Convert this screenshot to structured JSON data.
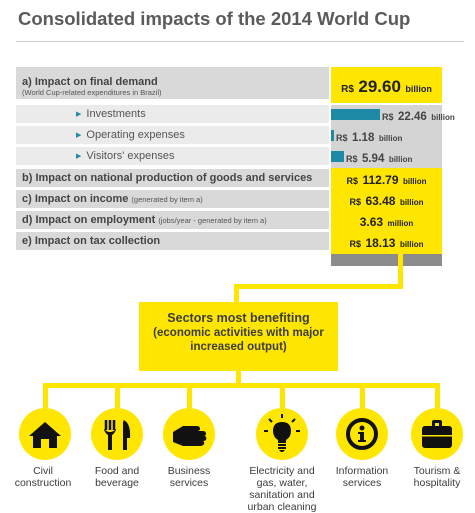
{
  "title": "Consolidated impacts of the 2014 World Cup",
  "rows": {
    "final_demand": {
      "label": "a) Impact on final demand",
      "note": "(World Cup-related expenditures in Brazil)",
      "currency": "R$",
      "value": "29.60",
      "unit": "billion"
    },
    "investments": {
      "label": "Investments",
      "currency": "R$",
      "value": "22.46",
      "unit": "billion"
    },
    "operating": {
      "label": "Operating expenses",
      "currency": "R$",
      "value": "1.18",
      "unit": "billion"
    },
    "visitors": {
      "label": "Visitors' expenses",
      "currency": "R$",
      "value": "5.94",
      "unit": "billion"
    },
    "production": {
      "label": "b) Impact on national production of goods and services",
      "currency": "R$",
      "value": "112.79",
      "unit": "billion"
    },
    "income": {
      "label": "c) Impact on income",
      "note": "(generated by item a)",
      "currency": "R$",
      "value": "63.48",
      "unit": "billion"
    },
    "employment": {
      "label": "d) Impact on employment",
      "note": "(jobs/year - generated by item a)",
      "value": "3.63",
      "unit": "million"
    },
    "tax": {
      "label": "e) Impact on tax collection",
      "currency": "R$",
      "value": "18.13",
      "unit": "billion"
    }
  },
  "bar_fractions": {
    "investments": 0.7588,
    "operating": 0.0399,
    "visitors": 0.2007
  },
  "sectors_box": {
    "line1": "Sectors most benefiting",
    "line2": "(economic activities with major",
    "line3": "increased output)"
  },
  "sectors": [
    {
      "icon": "house-icon",
      "line1": "Civil",
      "line2": "construction"
    },
    {
      "icon": "fork-knife-icon",
      "line1": "Food and",
      "line2": "beverage"
    },
    {
      "icon": "hand-icon",
      "line1": "Business",
      "line2": "services"
    },
    {
      "icon": "light-bulb-icon",
      "line1": "Electricity and",
      "line2": "gas, water,",
      "line3": "sanitation and",
      "line4": "urban cleaning"
    },
    {
      "icon": "info-icon",
      "line1": "Information",
      "line2": "services"
    },
    {
      "icon": "suitcase-icon",
      "line1": "Tourism &",
      "line2": "hospitality"
    }
  ],
  "colors": {
    "accent": "#ffe600",
    "bar": "#1e8aa6",
    "row_main": "#d9d9d9",
    "row_sub": "#ebebeb",
    "column_gray": "#d4d4d4"
  }
}
